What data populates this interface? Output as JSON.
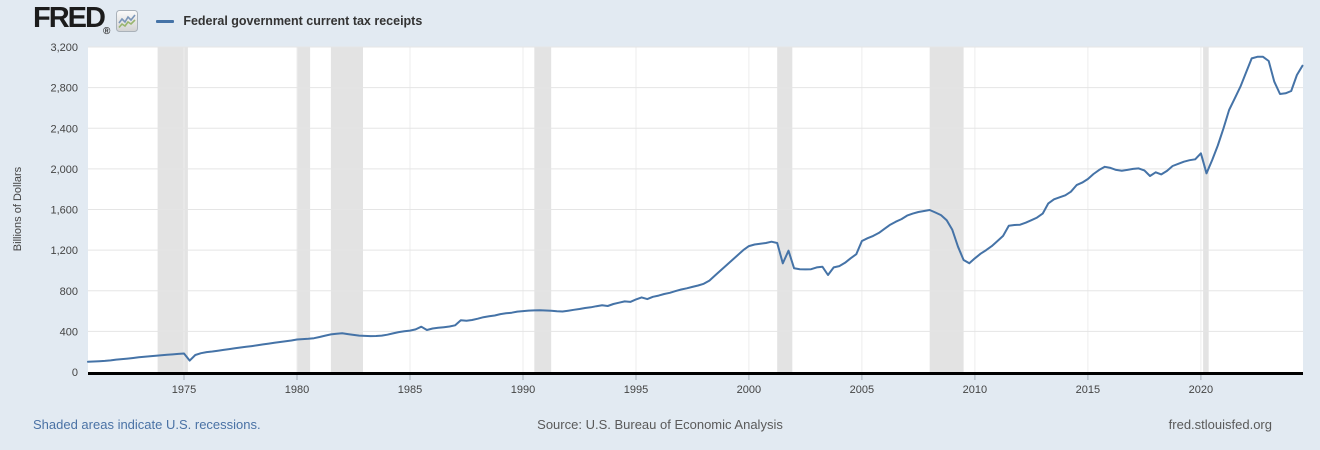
{
  "header": {
    "logo": "FRED",
    "registered": "®",
    "legend_label": "Federal government current tax receipts"
  },
  "footer": {
    "note": "Shaded areas indicate U.S. recessions.",
    "source": "Source: U.S. Bureau of Economic Analysis",
    "url": "fred.stlouisfed.org"
  },
  "colors": {
    "background": "#e2eaf2",
    "plot_background": "#ffffff",
    "line": "#4573a7",
    "recession_band": "#e3e3e3",
    "gridline": "#e5e5e5",
    "vertical_gridline": "#ececec",
    "axis": "#000000",
    "tick_text": "#444444",
    "tick_mark": "#a8b2bc",
    "footer_text": "#5a5a5a",
    "link": "#4a72a5",
    "legend_text": "#333333"
  },
  "chart_data": {
    "type": "line",
    "title": "Federal government current tax receipts",
    "xlabel": "",
    "ylabel": "Billions of Dollars",
    "xlim": [
      1970.75,
      2024.52
    ],
    "ylim": [
      0,
      3200
    ],
    "x_ticks": [
      1975,
      1980,
      1985,
      1990,
      1995,
      2000,
      2005,
      2010,
      2015,
      2020
    ],
    "y_ticks": [
      0,
      400,
      800,
      1200,
      1600,
      2000,
      2400,
      2800,
      3200
    ],
    "grid": true,
    "legend_position": "top-left",
    "recessions": [
      [
        1973.83,
        1975.17
      ],
      [
        1980.0,
        1980.58
      ],
      [
        1981.5,
        1982.92
      ],
      [
        1990.5,
        1991.25
      ],
      [
        2001.25,
        2001.92
      ],
      [
        2008.0,
        2009.5
      ],
      [
        2020.1,
        2020.35
      ]
    ],
    "series": [
      {
        "name": "Federal government current tax receipts",
        "color": "#4573a7",
        "points": [
          [
            1970.75,
            100
          ],
          [
            1971,
            103
          ],
          [
            1971.25,
            106
          ],
          [
            1971.5,
            109
          ],
          [
            1971.75,
            114
          ],
          [
            1972,
            122
          ],
          [
            1972.25,
            127
          ],
          [
            1972.5,
            132
          ],
          [
            1972.75,
            138
          ],
          [
            1973,
            145
          ],
          [
            1973.25,
            150
          ],
          [
            1973.5,
            155
          ],
          [
            1973.75,
            160
          ],
          [
            1974,
            164
          ],
          [
            1974.25,
            169
          ],
          [
            1974.5,
            173
          ],
          [
            1974.75,
            178
          ],
          [
            1975,
            182
          ],
          [
            1975.25,
            112
          ],
          [
            1975.5,
            167
          ],
          [
            1975.75,
            185
          ],
          [
            1976,
            196
          ],
          [
            1976.25,
            202
          ],
          [
            1976.5,
            210
          ],
          [
            1976.75,
            218
          ],
          [
            1977,
            225
          ],
          [
            1977.25,
            233
          ],
          [
            1977.5,
            241
          ],
          [
            1977.75,
            248
          ],
          [
            1978,
            255
          ],
          [
            1978.25,
            263
          ],
          [
            1978.5,
            272
          ],
          [
            1978.75,
            280
          ],
          [
            1979,
            288
          ],
          [
            1979.25,
            295
          ],
          [
            1979.5,
            302
          ],
          [
            1979.75,
            310
          ],
          [
            1980,
            320
          ],
          [
            1980.25,
            324
          ],
          [
            1980.5,
            327
          ],
          [
            1980.75,
            333
          ],
          [
            1981,
            345
          ],
          [
            1981.25,
            358
          ],
          [
            1981.5,
            370
          ],
          [
            1981.75,
            377
          ],
          [
            1982,
            381
          ],
          [
            1982.25,
            373
          ],
          [
            1982.5,
            365
          ],
          [
            1982.75,
            358
          ],
          [
            1983,
            355
          ],
          [
            1983.25,
            353
          ],
          [
            1983.5,
            354
          ],
          [
            1983.75,
            358
          ],
          [
            1984,
            367
          ],
          [
            1984.25,
            380
          ],
          [
            1984.5,
            393
          ],
          [
            1984.75,
            401
          ],
          [
            1985,
            408
          ],
          [
            1985.25,
            419
          ],
          [
            1985.5,
            446
          ],
          [
            1985.75,
            414
          ],
          [
            1986,
            428
          ],
          [
            1986.25,
            435
          ],
          [
            1986.5,
            441
          ],
          [
            1986.75,
            448
          ],
          [
            1987,
            460
          ],
          [
            1987.25,
            510
          ],
          [
            1987.5,
            505
          ],
          [
            1987.75,
            512
          ],
          [
            1988,
            525
          ],
          [
            1988.25,
            540
          ],
          [
            1988.5,
            548
          ],
          [
            1988.75,
            556
          ],
          [
            1989,
            570
          ],
          [
            1989.25,
            578
          ],
          [
            1989.5,
            584
          ],
          [
            1989.75,
            595
          ],
          [
            1990,
            600
          ],
          [
            1990.25,
            605
          ],
          [
            1990.5,
            607
          ],
          [
            1990.75,
            608
          ],
          [
            1991,
            606
          ],
          [
            1991.25,
            604
          ],
          [
            1991.5,
            599
          ],
          [
            1991.75,
            596
          ],
          [
            1992,
            604
          ],
          [
            1992.25,
            612
          ],
          [
            1992.5,
            620
          ],
          [
            1992.75,
            630
          ],
          [
            1993,
            637
          ],
          [
            1993.25,
            648
          ],
          [
            1993.5,
            657
          ],
          [
            1993.75,
            650
          ],
          [
            1994,
            670
          ],
          [
            1994.25,
            682
          ],
          [
            1994.5,
            695
          ],
          [
            1994.75,
            690
          ],
          [
            1995,
            715
          ],
          [
            1995.25,
            735
          ],
          [
            1995.5,
            718
          ],
          [
            1995.75,
            740
          ],
          [
            1996,
            752
          ],
          [
            1996.25,
            768
          ],
          [
            1996.5,
            780
          ],
          [
            1996.75,
            797
          ],
          [
            1997,
            812
          ],
          [
            1997.25,
            824
          ],
          [
            1997.5,
            838
          ],
          [
            1997.75,
            852
          ],
          [
            1998,
            868
          ],
          [
            1998.25,
            900
          ],
          [
            1998.5,
            950
          ],
          [
            1998.75,
            1000
          ],
          [
            1999,
            1050
          ],
          [
            1999.25,
            1100
          ],
          [
            1999.5,
            1150
          ],
          [
            1999.75,
            1200
          ],
          [
            2000,
            1240
          ],
          [
            2000.25,
            1255
          ],
          [
            2000.5,
            1262
          ],
          [
            2000.75,
            1270
          ],
          [
            2001,
            1283
          ],
          [
            2001.25,
            1270
          ],
          [
            2001.5,
            1070
          ],
          [
            2001.75,
            1194
          ],
          [
            2002,
            1021
          ],
          [
            2002.25,
            1012
          ],
          [
            2002.5,
            1010
          ],
          [
            2002.75,
            1012
          ],
          [
            2003,
            1030
          ],
          [
            2003.25,
            1037
          ],
          [
            2003.5,
            955
          ],
          [
            2003.75,
            1030
          ],
          [
            2004,
            1043
          ],
          [
            2004.25,
            1075
          ],
          [
            2004.5,
            1120
          ],
          [
            2004.75,
            1160
          ],
          [
            2005,
            1290
          ],
          [
            2005.25,
            1317
          ],
          [
            2005.5,
            1340
          ],
          [
            2005.75,
            1370
          ],
          [
            2006,
            1410
          ],
          [
            2006.25,
            1450
          ],
          [
            2006.5,
            1480
          ],
          [
            2006.75,
            1505
          ],
          [
            2007,
            1540
          ],
          [
            2007.25,
            1560
          ],
          [
            2007.5,
            1575
          ],
          [
            2007.75,
            1585
          ],
          [
            2008,
            1595
          ],
          [
            2008.25,
            1570
          ],
          [
            2008.5,
            1545
          ],
          [
            2008.75,
            1495
          ],
          [
            2009,
            1400
          ],
          [
            2009.25,
            1234
          ],
          [
            2009.5,
            1103
          ],
          [
            2009.75,
            1070
          ],
          [
            2010,
            1120
          ],
          [
            2010.25,
            1165
          ],
          [
            2010.5,
            1200
          ],
          [
            2010.75,
            1240
          ],
          [
            2011,
            1290
          ],
          [
            2011.25,
            1340
          ],
          [
            2011.5,
            1440
          ],
          [
            2011.75,
            1447
          ],
          [
            2012,
            1450
          ],
          [
            2012.25,
            1470
          ],
          [
            2012.5,
            1495
          ],
          [
            2012.75,
            1520
          ],
          [
            2013,
            1560
          ],
          [
            2013.25,
            1660
          ],
          [
            2013.5,
            1700
          ],
          [
            2013.75,
            1720
          ],
          [
            2014,
            1740
          ],
          [
            2014.25,
            1775
          ],
          [
            2014.5,
            1840
          ],
          [
            2014.75,
            1865
          ],
          [
            2015,
            1900
          ],
          [
            2015.25,
            1950
          ],
          [
            2015.5,
            1990
          ],
          [
            2015.75,
            2020
          ],
          [
            2016,
            2010
          ],
          [
            2016.25,
            1990
          ],
          [
            2016.5,
            1982
          ],
          [
            2016.75,
            1990
          ],
          [
            2017,
            2000
          ],
          [
            2017.25,
            2005
          ],
          [
            2017.5,
            1985
          ],
          [
            2017.75,
            1930
          ],
          [
            2018,
            1966
          ],
          [
            2018.25,
            1946
          ],
          [
            2018.5,
            1980
          ],
          [
            2018.75,
            2028
          ],
          [
            2019,
            2050
          ],
          [
            2019.25,
            2071
          ],
          [
            2019.5,
            2085
          ],
          [
            2019.75,
            2094
          ],
          [
            2020,
            2153
          ],
          [
            2020.25,
            1956
          ],
          [
            2020.5,
            2087
          ],
          [
            2020.75,
            2230
          ],
          [
            2021,
            2400
          ],
          [
            2021.25,
            2580
          ],
          [
            2021.5,
            2695
          ],
          [
            2021.75,
            2809
          ],
          [
            2022,
            2950
          ],
          [
            2022.25,
            3088
          ],
          [
            2022.5,
            3104
          ],
          [
            2022.75,
            3104
          ],
          [
            2023,
            3062
          ],
          [
            2023.25,
            2858
          ],
          [
            2023.5,
            2737
          ],
          [
            2023.75,
            2744
          ],
          [
            2024,
            2767
          ],
          [
            2024.25,
            2924
          ],
          [
            2024.5,
            3016
          ]
        ]
      }
    ]
  }
}
